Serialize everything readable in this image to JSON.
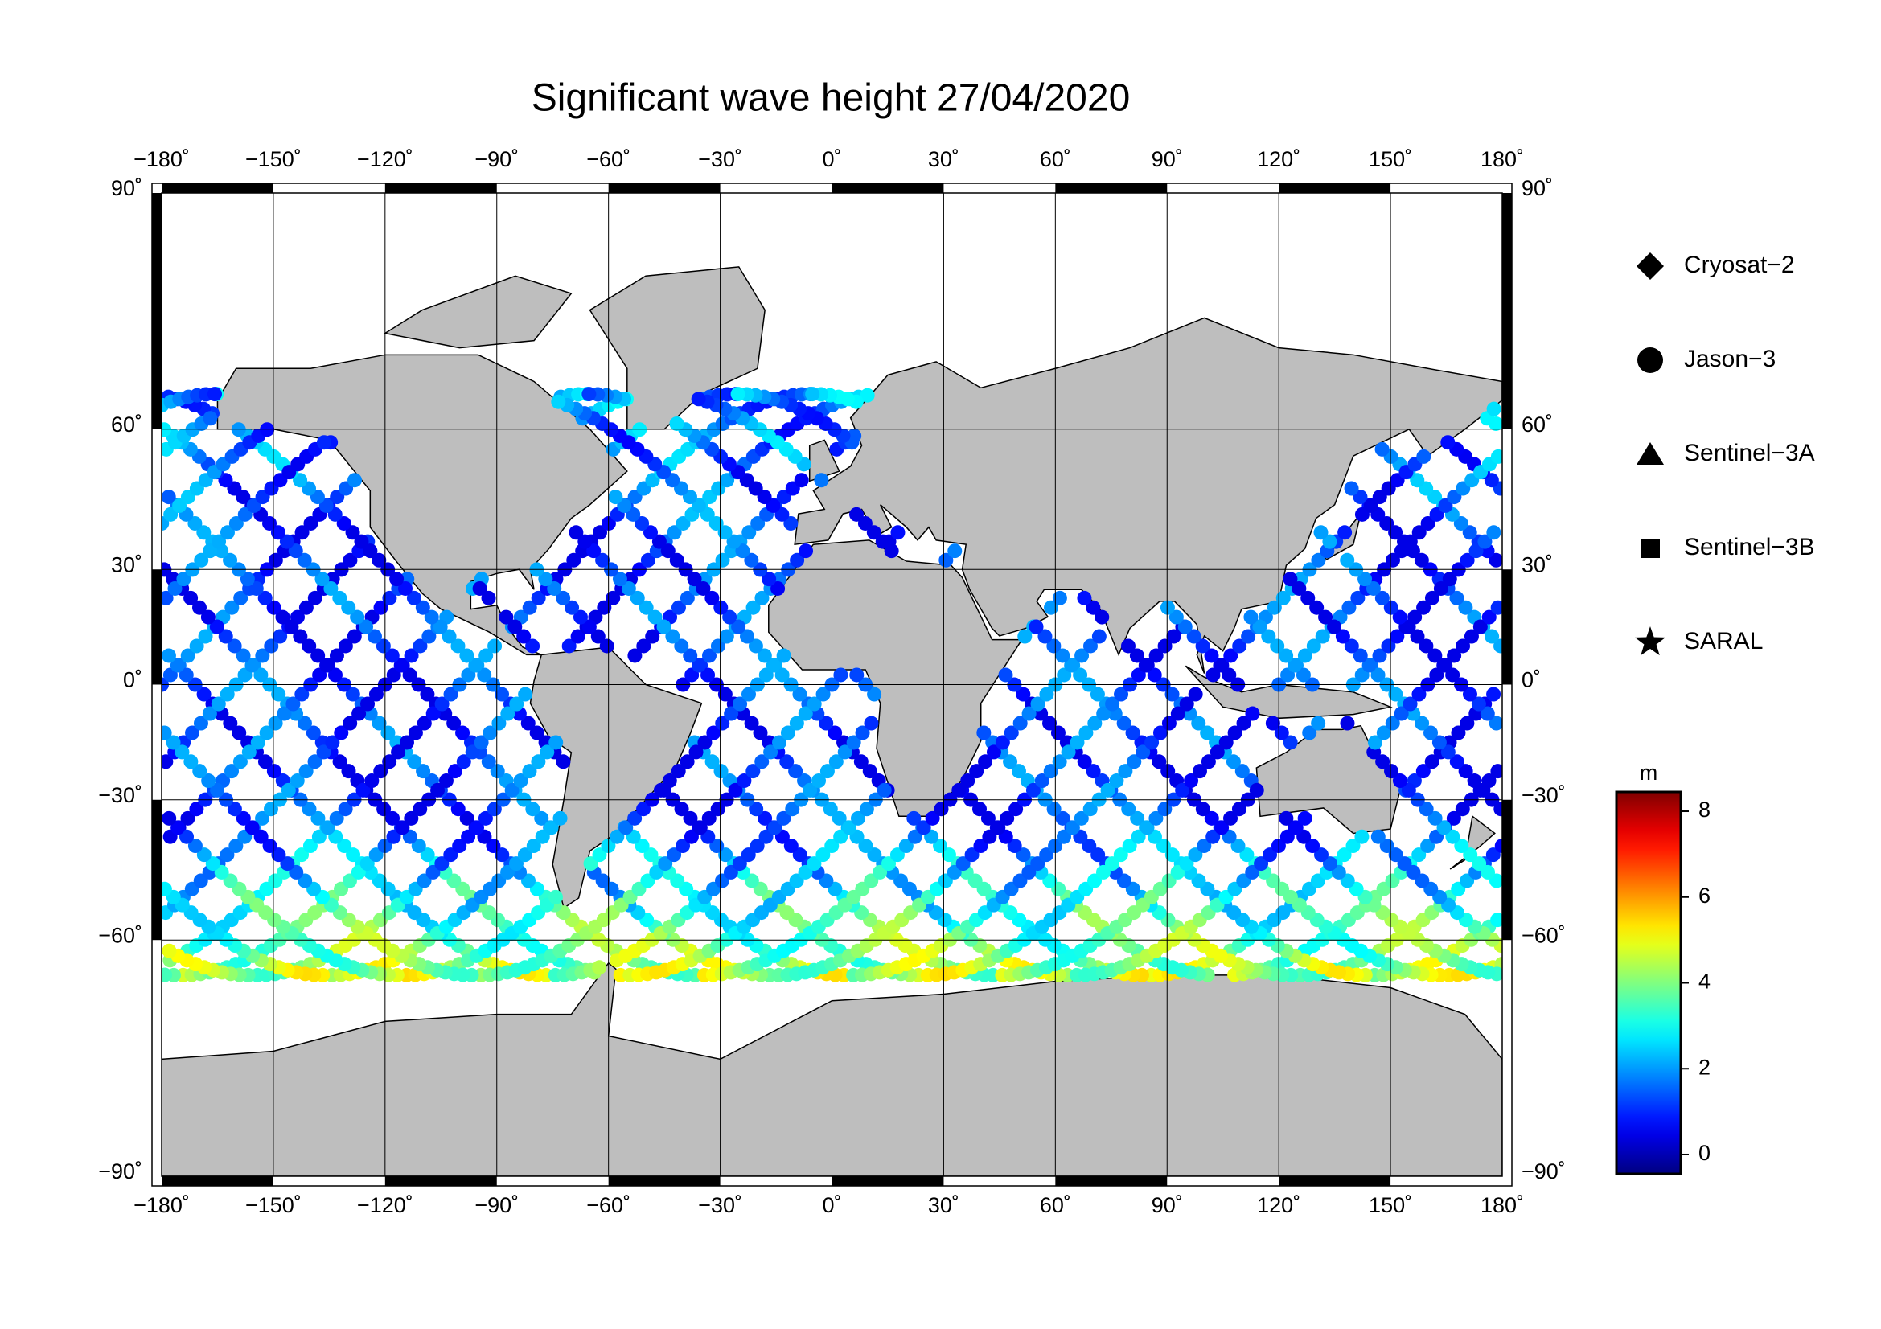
{
  "map": {
    "title": "Significant wave height 27/04/2020",
    "lonlim": [
      -180,
      180
    ],
    "latlim": [
      -90,
      90
    ],
    "lonticks": [
      {
        "value": -180,
        "label": "−180˚"
      },
      {
        "value": -150,
        "label": "−150˚"
      },
      {
        "value": -120,
        "label": "−120˚"
      },
      {
        "value": -90,
        "label": "−90˚"
      },
      {
        "value": -60,
        "label": "−60˚"
      },
      {
        "value": -30,
        "label": "−30˚"
      },
      {
        "value": 0,
        "label": "0˚"
      },
      {
        "value": 30,
        "label": "30˚"
      },
      {
        "value": 60,
        "label": "60˚"
      },
      {
        "value": 90,
        "label": "90˚"
      },
      {
        "value": 120,
        "label": "120˚"
      },
      {
        "value": 150,
        "label": "150˚"
      },
      {
        "value": 180,
        "label": "180˚"
      }
    ],
    "latticks": [
      {
        "value": 90,
        "label": "90˚"
      },
      {
        "value": 60,
        "label": "60˚"
      },
      {
        "value": 30,
        "label": "30˚"
      },
      {
        "value": 0,
        "label": "0˚"
      },
      {
        "value": -30,
        "label": "−30˚"
      },
      {
        "value": -60,
        "label": "−60˚"
      },
      {
        "value": -90,
        "label": "−90˚"
      }
    ],
    "legend": [
      "Cryosat−2",
      "Jason−3",
      "Sentinel−3A",
      "Sentinel−3B",
      "SARAL"
    ],
    "colorbar": {
      "label": "m",
      "lim": [
        -0.45,
        8.45
      ],
      "ticks": [
        0,
        2,
        4,
        6,
        8
      ],
      "colormap": "jet"
    }
  }
}
